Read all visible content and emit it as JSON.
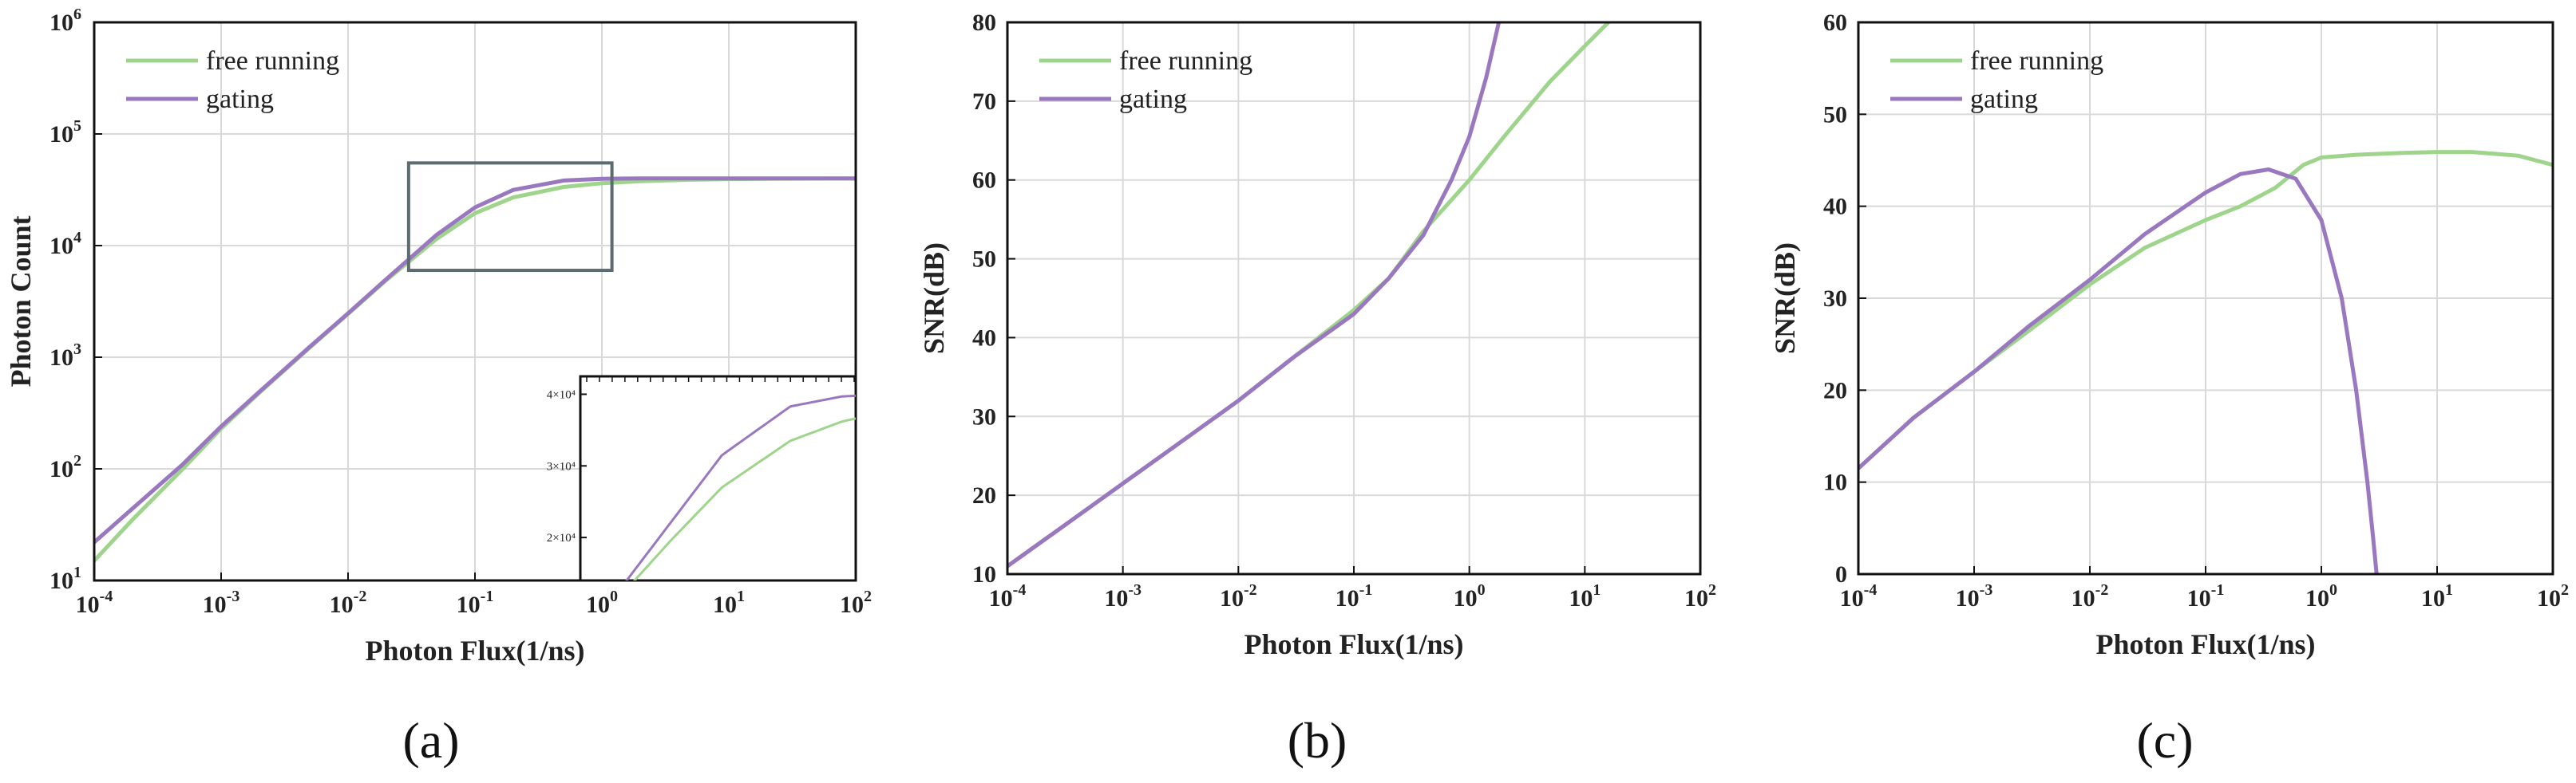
{
  "colors": {
    "free_running": "#9fd48c",
    "gating": "#9a78c0",
    "grid": "#d9d9d9",
    "inset_box": "#5b6b70"
  },
  "chart_data": [
    {
      "type": "line",
      "panel": "(a)",
      "xlabel": "Photon Flux(1/ns)",
      "ylabel": "Photon Count",
      "xscale": "log",
      "yscale": "log",
      "xlim": [
        0.0001,
        100
      ],
      "ylim": [
        10,
        1000000
      ],
      "x_ticks": [
        {
          "base": "10",
          "exp": "-4"
        },
        {
          "base": "10",
          "exp": "-3"
        },
        {
          "base": "10",
          "exp": "-2"
        },
        {
          "base": "10",
          "exp": "-1"
        },
        {
          "base": "10",
          "exp": "0"
        },
        {
          "base": "10",
          "exp": "1"
        },
        {
          "base": "10",
          "exp": "2"
        }
      ],
      "y_ticks": [
        {
          "base": "10",
          "exp": "1"
        },
        {
          "base": "10",
          "exp": "2"
        },
        {
          "base": "10",
          "exp": "3"
        },
        {
          "base": "10",
          "exp": "4"
        },
        {
          "base": "10",
          "exp": "5"
        },
        {
          "base": "10",
          "exp": "6"
        }
      ],
      "legend": [
        "free running",
        "gating"
      ],
      "legend_position": "top-left",
      "grid": true,
      "series": [
        {
          "name": "free running",
          "x": [
            0.0001,
            0.0002,
            0.0005,
            0.001,
            0.002,
            0.005,
            0.01,
            0.02,
            0.05,
            0.1,
            0.2,
            0.5,
            1,
            2,
            5,
            10,
            20,
            50,
            100
          ],
          "y": [
            15,
            35,
            100,
            230,
            480,
            1220,
            2440,
            4900,
            11500,
            19500,
            27000,
            33500,
            36200,
            37800,
            38900,
            39400,
            39600,
            39800,
            39900
          ]
        },
        {
          "name": "gating",
          "x": [
            0.0001,
            0.0002,
            0.0005,
            0.001,
            0.002,
            0.005,
            0.01,
            0.02,
            0.05,
            0.1,
            0.2,
            0.5,
            1,
            2,
            5,
            10,
            20,
            50,
            100
          ],
          "y": [
            22,
            44,
            110,
            240,
            490,
            1240,
            2470,
            5000,
            12500,
            22000,
            31500,
            38300,
            39700,
            40000,
            40000,
            40000,
            40000,
            40000,
            40000
          ]
        }
      ],
      "inset": {
        "y_ticks": [
          "2×10⁴",
          "3×10⁴",
          "4×10⁴"
        ],
        "y_values": [
          20000,
          30000,
          40000
        ],
        "ylim": [
          14000,
          42500
        ],
        "xlim": [
          0.03,
          1.2
        ],
        "zoom_box": {
          "x": [
            0.03,
            1.2
          ],
          "y": [
            6000,
            55000
          ]
        }
      }
    },
    {
      "type": "line",
      "panel": "(b)",
      "xlabel": "Photon Flux(1/ns)",
      "ylabel": "SNR(dB)",
      "xscale": "log",
      "xlim": [
        0.0001,
        100
      ],
      "ylim": [
        10,
        80
      ],
      "x_ticks": [
        {
          "base": "10",
          "exp": "-4"
        },
        {
          "base": "10",
          "exp": "-3"
        },
        {
          "base": "10",
          "exp": "-2"
        },
        {
          "base": "10",
          "exp": "-1"
        },
        {
          "base": "10",
          "exp": "0"
        },
        {
          "base": "10",
          "exp": "1"
        },
        {
          "base": "10",
          "exp": "2"
        }
      ],
      "y_ticks": [
        "10",
        "20",
        "30",
        "40",
        "50",
        "60",
        "70",
        "80"
      ],
      "legend": [
        "free running",
        "gating"
      ],
      "legend_position": "top-left",
      "grid": true,
      "series": [
        {
          "name": "free running",
          "x": [
            0.0001,
            0.0003,
            0.001,
            0.003,
            0.01,
            0.03,
            0.1,
            0.2,
            0.4,
            1,
            2,
            5,
            10,
            16
          ],
          "y": [
            11,
            16,
            21.5,
            26.5,
            32,
            37.5,
            43.5,
            47.5,
            53.5,
            60,
            65.5,
            72.5,
            77,
            80
          ]
        },
        {
          "name": "gating",
          "x": [
            0.0001,
            0.0003,
            0.001,
            0.003,
            0.01,
            0.03,
            0.1,
            0.2,
            0.4,
            0.7,
            1,
            1.4,
            1.8
          ],
          "y": [
            11,
            16,
            21.5,
            26.5,
            32,
            37.5,
            43,
            47.5,
            53,
            60,
            65.5,
            73,
            80
          ]
        }
      ]
    },
    {
      "type": "line",
      "panel": "(c)",
      "xlabel": "Photon Flux(1/ns)",
      "ylabel": "SNR(dB)",
      "xscale": "log",
      "xlim": [
        0.0001,
        100
      ],
      "ylim": [
        0,
        60
      ],
      "x_ticks": [
        {
          "base": "10",
          "exp": "-4"
        },
        {
          "base": "10",
          "exp": "-3"
        },
        {
          "base": "10",
          "exp": "-2"
        },
        {
          "base": "10",
          "exp": "-1"
        },
        {
          "base": "10",
          "exp": "0"
        },
        {
          "base": "10",
          "exp": "1"
        },
        {
          "base": "10",
          "exp": "2"
        }
      ],
      "y_ticks": [
        "0",
        "10",
        "20",
        "30",
        "40",
        "50",
        "60"
      ],
      "legend": [
        "free running",
        "gating"
      ],
      "legend_position": "top-left",
      "grid": true,
      "series": [
        {
          "name": "free running",
          "x": [
            0.0001,
            0.0003,
            0.001,
            0.003,
            0.01,
            0.03,
            0.1,
            0.2,
            0.4,
            0.7,
            1,
            2,
            5,
            10,
            20,
            50,
            100
          ],
          "y": [
            11.5,
            17,
            22,
            26.5,
            31.5,
            35.5,
            38.5,
            40,
            42,
            44.5,
            45.3,
            45.6,
            45.8,
            45.9,
            45.9,
            45.5,
            44.5
          ]
        },
        {
          "name": "gating",
          "x": [
            0.0001,
            0.0003,
            0.001,
            0.003,
            0.01,
            0.03,
            0.1,
            0.2,
            0.35,
            0.6,
            1,
            1.5,
            2,
            2.5,
            2.8,
            3
          ],
          "y": [
            11.5,
            17,
            22,
            27,
            32,
            37,
            41.5,
            43.5,
            44,
            43,
            38.5,
            30,
            20,
            10,
            4,
            0
          ]
        }
      ]
    }
  ]
}
